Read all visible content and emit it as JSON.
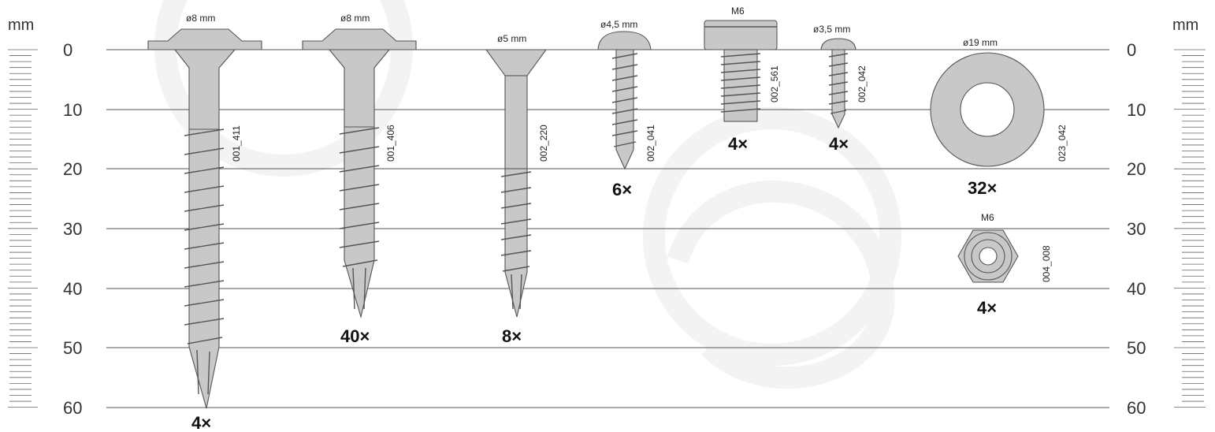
{
  "unit_label": "mm",
  "scale_ticks": [
    "0",
    "10",
    "20",
    "30",
    "40",
    "50",
    "60"
  ],
  "parts": [
    {
      "code": "001_411",
      "size": "ø8 mm",
      "qty": "4×"
    },
    {
      "code": "001_406",
      "size": "ø8 mm",
      "qty": "40×"
    },
    {
      "code": "002_220",
      "size": "ø5 mm",
      "qty": "8×"
    },
    {
      "code": "002_041",
      "size": "ø4,5 mm",
      "qty": "6×"
    },
    {
      "code": "002_561",
      "size": "M6",
      "qty": "4×"
    },
    {
      "code": "002_042",
      "size": "ø3,5 mm",
      "qty": "4×"
    },
    {
      "code": "023_042",
      "size": "ø19 mm",
      "qty": "32×"
    },
    {
      "code": "004_008",
      "size": "M6",
      "qty": "4×"
    }
  ]
}
